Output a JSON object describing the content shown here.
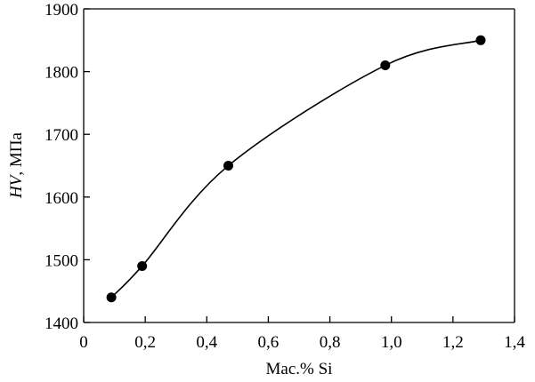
{
  "chart_data": {
    "type": "line",
    "xlabel": "Мас.% Si",
    "ylabel": {
      "symbol": "HV",
      "unit": ", МПа"
    },
    "xlim": [
      0,
      1.4
    ],
    "ylim": [
      1400,
      1900
    ],
    "xticks": [
      0,
      0.2,
      0.4,
      0.6,
      0.8,
      1.0,
      1.2,
      1.4
    ],
    "xtick_labels": [
      "0",
      "0,2",
      "0,4",
      "0,6",
      "0,8",
      "1,0",
      "1,2",
      "1,4"
    ],
    "yticks": [
      1400,
      1500,
      1600,
      1700,
      1800,
      1900
    ],
    "ytick_labels": [
      "1400",
      "1500",
      "1600",
      "1700",
      "1800",
      "1900"
    ],
    "grid": false,
    "series": [
      {
        "x": [
          0.09,
          0.19,
          0.47,
          0.98,
          1.29
        ],
        "y": [
          1440,
          1490,
          1650,
          1810,
          1850
        ]
      }
    ],
    "colors": {
      "line": "#000000",
      "marker": "#000000"
    }
  }
}
